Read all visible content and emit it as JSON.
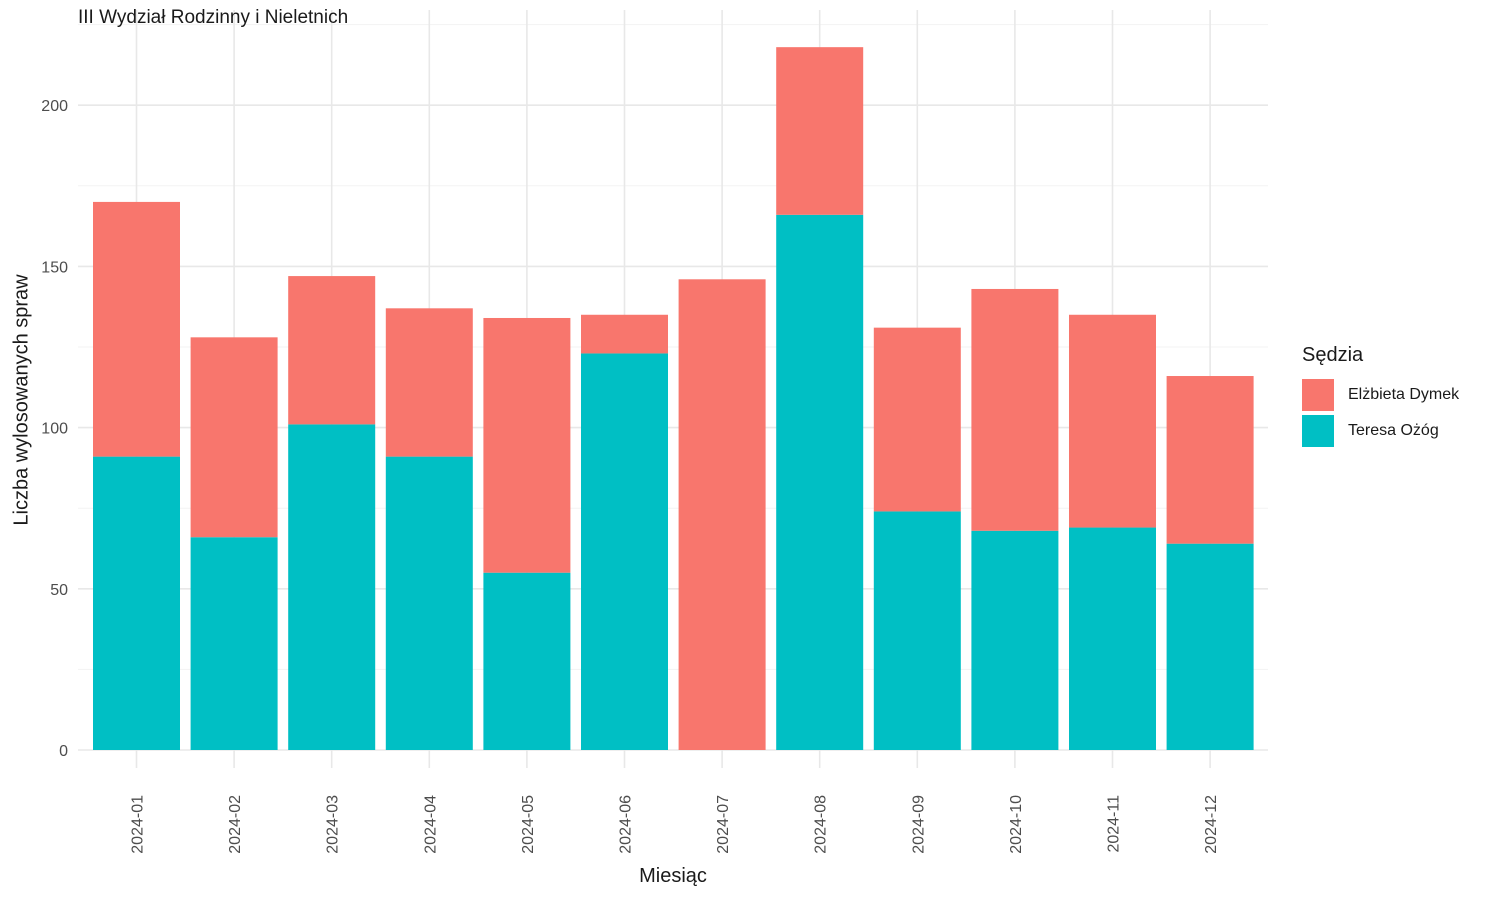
{
  "chart_data": {
    "type": "bar",
    "stacked": true,
    "title": "III Wydział Rodzinny i Nieletnich",
    "xlabel": "Miesiąc",
    "ylabel": "Liczba wylosowanych spraw",
    "categories": [
      "2024-01",
      "2024-02",
      "2024-03",
      "2024-04",
      "2024-05",
      "2024-06",
      "2024-07",
      "2024-08",
      "2024-09",
      "2024-10",
      "2024-11",
      "2024-12"
    ],
    "series": [
      {
        "name": "Teresa Ożóg",
        "color": "#00BFC4",
        "values": [
          91,
          66,
          101,
          91,
          55,
          123,
          0,
          166,
          74,
          68,
          69,
          64
        ]
      },
      {
        "name": "Elżbieta Dymek",
        "color": "#F8766D",
        "values": [
          79,
          62,
          46,
          46,
          79,
          12,
          146,
          52,
          57,
          75,
          66,
          52
        ]
      }
    ],
    "ylim": [
      0,
      220
    ],
    "yticks": [
      0,
      50,
      100,
      150,
      200
    ],
    "legend": {
      "title": "Sędzia",
      "position": "right",
      "items": [
        {
          "label": "Elżbieta Dymek",
          "color": "#F8766D"
        },
        {
          "label": "Teresa Ożóg",
          "color": "#00BFC4"
        }
      ]
    },
    "grid": true
  }
}
